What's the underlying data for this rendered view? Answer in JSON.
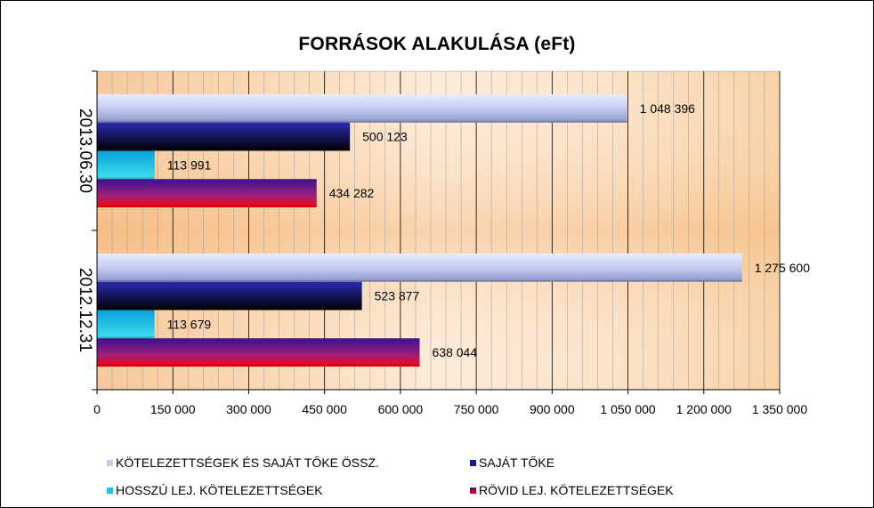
{
  "chart_data": {
    "type": "bar",
    "orientation": "horizontal",
    "title": "FORRÁSOK ALAKULÁSA (eFt)",
    "categories": [
      "2013.06.30",
      "2012.12.31"
    ],
    "series": [
      {
        "name": "KÖTELEZETTSÉGEK ÉS SAJÁT TŐKE ÖSSZ.",
        "values": [
          1048396,
          1275600
        ],
        "labels": [
          "1 048 396",
          "1 275 600"
        ],
        "color": "#c8d0f0",
        "color_dark": "#9aa8d8"
      },
      {
        "name": "SAJÁT TŐKE",
        "values": [
          500123,
          523877
        ],
        "labels": [
          "500 123",
          "523 877"
        ],
        "color": "#1a1a8c",
        "color_dark": "#000033"
      },
      {
        "name": "HOSSZÚ LEJ. KÖTELEZETTSÉGEK",
        "values": [
          113991,
          113679
        ],
        "labels": [
          "113 991",
          "113 679"
        ],
        "color": "#20c0e0",
        "color_dark": "#0090c0"
      },
      {
        "name": "RÖVID LEJ. KÖTELEZETTSÉGEK",
        "values": [
          434282,
          638044
        ],
        "labels": [
          "434 282",
          "638 044"
        ],
        "color": "#8020a0",
        "color_dark": "#ff0000"
      }
    ],
    "xlim": [
      0,
      1350000
    ],
    "xticks": [
      0,
      150000,
      300000,
      450000,
      600000,
      750000,
      900000,
      1050000,
      1200000,
      1350000
    ],
    "xtick_labels": [
      "0",
      "150 000",
      "300 000",
      "450 000",
      "600 000",
      "750 000",
      "900 000",
      "1 050 000",
      "1 200 000",
      "1 350 000"
    ],
    "grid": true,
    "legend_position": "bottom"
  }
}
